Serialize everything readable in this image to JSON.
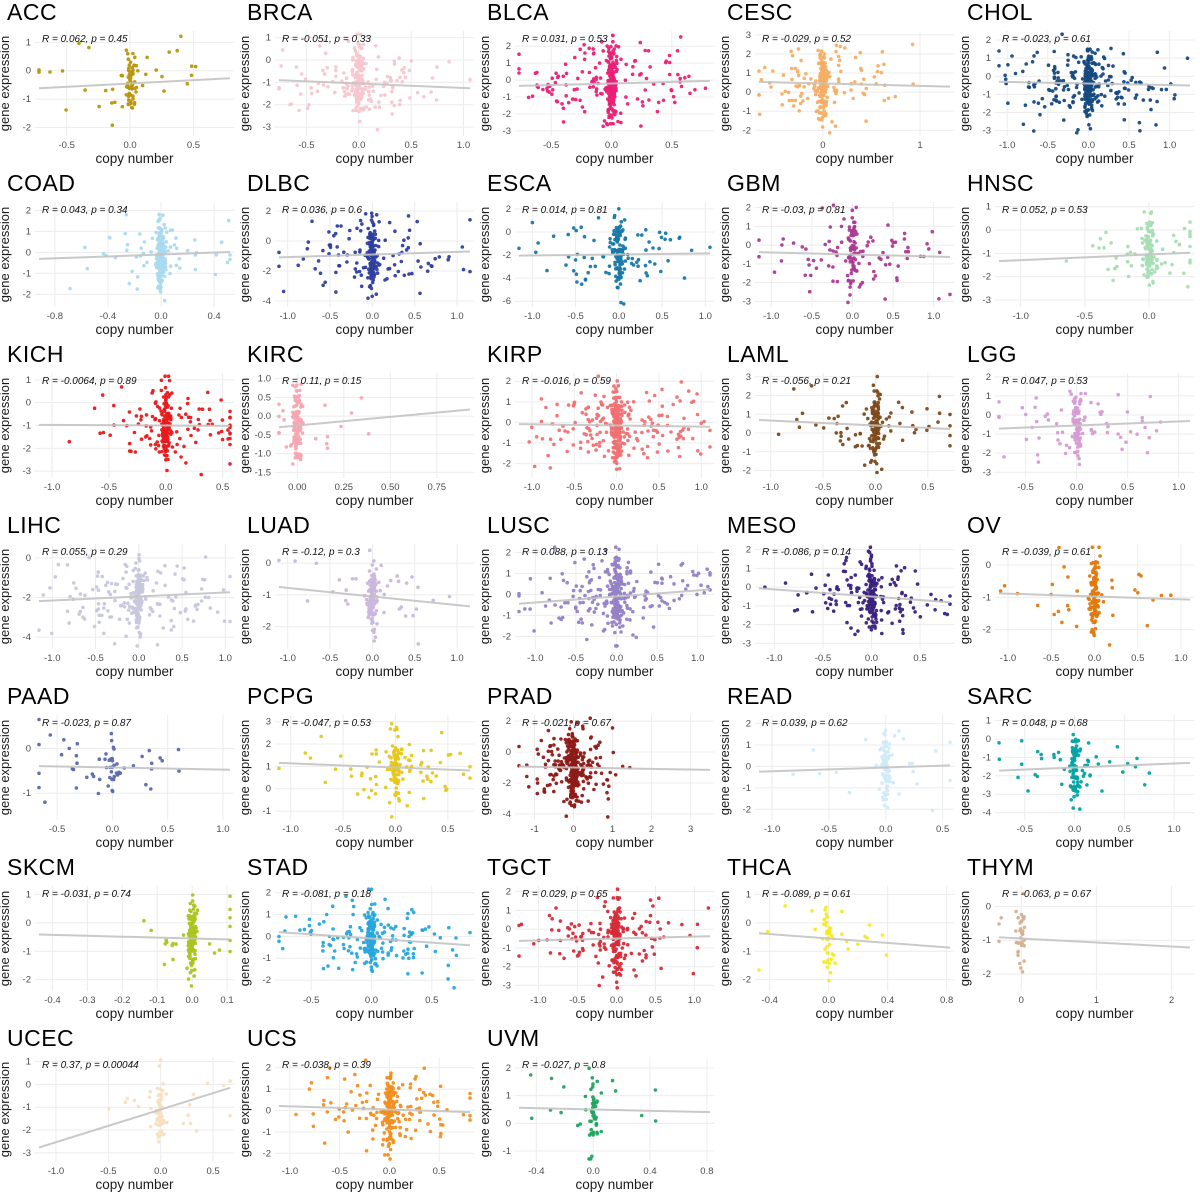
{
  "figure": {
    "xlabel": "copy number",
    "ylabel": "gene expression",
    "grid_color": "#ececec",
    "trend_color": "#c3c3c3",
    "tick_color": "#4d4d4d",
    "label_color": "#1a1a1a",
    "annotation_color": "#111111"
  },
  "chart_data": {
    "type": "scatter",
    "description": "Grid of per-cancer-type scatter plots of gene expression vs copy number with linear trend line and Pearson correlation annotation",
    "panels": [
      {
        "title": "ACC",
        "ann": "R = 0.062, p = 0.45",
        "color": "#b8960b",
        "xlim": [
          -0.75,
          0.82
        ],
        "ylim": [
          -2.3,
          1.4
        ],
        "xticks": [
          "-0.5",
          "0.0",
          "0.5"
        ],
        "yticks": [
          "1",
          "0",
          "-1",
          "-2"
        ],
        "n": 90,
        "spread": 0.45
      },
      {
        "title": "BRCA",
        "ann": "R = -0.051, p = 0.33",
        "color": "#f7c6cf",
        "xlim": [
          -0.8,
          1.1
        ],
        "ylim": [
          -3.4,
          1.3
        ],
        "xticks": [
          "-0.5",
          "0.0",
          "0.5",
          "1.0"
        ],
        "yticks": [
          "1",
          "0",
          "-1",
          "-2",
          "-3"
        ],
        "n": 260,
        "spread": 0.5
      },
      {
        "title": "BLCA",
        "ann": "R = 0.031, p = 0.53",
        "color": "#eb2077",
        "xlim": [
          -0.8,
          0.85
        ],
        "ylim": [
          -3.3,
          2.9
        ],
        "xticks": [
          "-0.5",
          "0.0",
          "0.5"
        ],
        "yticks": [
          "2",
          "1",
          "0",
          "-1",
          "-2",
          "-3"
        ],
        "n": 300,
        "spread": 0.45
      },
      {
        "title": "CESC",
        "ann": "R = -0.029, p = 0.52",
        "color": "#f6ae64",
        "xlim": [
          -0.7,
          1.35
        ],
        "ylim": [
          -2.3,
          3.2
        ],
        "xticks": [
          "0",
          "1"
        ],
        "yticks": [
          "3",
          "2",
          "1",
          "0",
          "-1",
          "-2"
        ],
        "n": 250,
        "spread": 0.4
      },
      {
        "title": "CHOL",
        "ann": "R = -0.023, p = 0.61",
        "color": "#16497f",
        "xlim": [
          -1.15,
          1.3
        ],
        "ylim": [
          -3.3,
          2.5
        ],
        "xticks": [
          "-1.0",
          "-0.5",
          "0.0",
          "0.5",
          "1.0"
        ],
        "yticks": [
          "2",
          "1",
          "0",
          "-1",
          "-2",
          "-3"
        ],
        "n": 330,
        "spread": 0.55
      },
      {
        "title": "COAD",
        "ann": "R = 0.043, p = 0.34",
        "color": "#a9daee",
        "xlim": [
          -0.95,
          0.55
        ],
        "ylim": [
          -2.6,
          2.4
        ],
        "xticks": [
          "-0.8",
          "-0.4",
          "0.0",
          "0.4"
        ],
        "yticks": [
          "2",
          "1",
          "0",
          "-1",
          "-2"
        ],
        "n": 240,
        "spread": 0.22
      },
      {
        "title": "DLBC",
        "ann": "R = 0.036, p = 0.6",
        "color": "#2f3f9f",
        "xlim": [
          -1.15,
          1.2
        ],
        "ylim": [
          -4.4,
          2.6
        ],
        "xticks": [
          "-1.0",
          "-0.5",
          "0.0",
          "0.5",
          "1.0"
        ],
        "yticks": [
          "2",
          "0",
          "-2",
          "-4"
        ],
        "n": 220,
        "spread": 0.5
      },
      {
        "title": "ESCA",
        "ann": "R = 0.014, p = 0.81",
        "color": "#1878a8",
        "xlim": [
          -1.2,
          1.1
        ],
        "ylim": [
          -6.5,
          2.6
        ],
        "xticks": [
          "-1.0",
          "-0.5",
          "0.0",
          "0.5",
          "1.0"
        ],
        "yticks": [
          "2",
          "0",
          "-2",
          "-4",
          "-6"
        ],
        "n": 180,
        "spread": 0.45
      },
      {
        "title": "GBM",
        "ann": "R = -0.03, p = 0.81",
        "color": "#ab3a92",
        "xlim": [
          -1.2,
          1.25
        ],
        "ylim": [
          -3.3,
          2.3
        ],
        "xticks": [
          "-1.0",
          "-0.5",
          "0.0",
          "0.5",
          "1.0"
        ],
        "yticks": [
          "2",
          "1",
          "0",
          "-1",
          "-2",
          "-3"
        ],
        "n": 150,
        "spread": 0.55
      },
      {
        "title": "HNSC",
        "ann": "R = 0.052, p = 0.53",
        "color": "#a7ddb3",
        "xlim": [
          -1.2,
          0.35
        ],
        "ylim": [
          -3.3,
          1.2
        ],
        "xticks": [
          "-1.0",
          "-0.5",
          "0.0"
        ],
        "yticks": [
          "1",
          "0",
          "-1",
          "-2",
          "-3"
        ],
        "n": 150,
        "spread": 0.4
      },
      {
        "title": "KICH",
        "ann": "R = -0.0064, p = 0.89",
        "color": "#e71a1c",
        "xlim": [
          -1.15,
          0.6
        ],
        "ylim": [
          -3.3,
          1.3
        ],
        "xticks": [
          "-1.0",
          "-0.5",
          "0.0",
          "0.5"
        ],
        "yticks": [
          "1",
          "0",
          "-1",
          "-2",
          "-3"
        ],
        "n": 220,
        "spread": 0.5
      },
      {
        "title": "KIRC",
        "ann": "R = 0.11, p = 0.15",
        "color": "#f8a6b0",
        "xlim": [
          -0.12,
          0.95
        ],
        "ylim": [
          -1.65,
          1.15
        ],
        "xticks": [
          "0.00",
          "0.25",
          "0.50",
          "0.75"
        ],
        "yticks": [
          "1.0",
          "0.5",
          "0.0",
          "-0.5",
          "-1.0",
          "-1.5"
        ],
        "n": 140,
        "spread": 0.12
      },
      {
        "title": "KIRP",
        "ann": "R = -0.016, p = 0.59",
        "color": "#f07173",
        "xlim": [
          -1.2,
          1.15
        ],
        "ylim": [
          -2.7,
          2.4
        ],
        "xticks": [
          "-1.0",
          "-0.5",
          "0.0",
          "0.5",
          "1.0"
        ],
        "yticks": [
          "2",
          "1",
          "0",
          "-1",
          "-2"
        ],
        "n": 340,
        "spread": 0.55
      },
      {
        "title": "LAML",
        "ann": "R = -0.056, p = 0.21",
        "color": "#7d4b1d",
        "xlim": [
          -1.15,
          0.75
        ],
        "ylim": [
          -2.4,
          3.2
        ],
        "xticks": [
          "-1.0",
          "-0.5",
          "0.0",
          "0.5"
        ],
        "yticks": [
          "3",
          "2",
          "1",
          "0",
          "-1",
          "-2"
        ],
        "n": 190,
        "spread": 0.35
      },
      {
        "title": "LGG",
        "ann": "R = 0.047, p = 0.53",
        "color": "#d69cd4",
        "xlim": [
          -0.8,
          1.15
        ],
        "ylim": [
          -3.3,
          2.2
        ],
        "xticks": [
          "-0.5",
          "0.0",
          "0.5",
          "1.0"
        ],
        "yticks": [
          "2",
          "1",
          "0",
          "-1",
          "-2",
          "-3"
        ],
        "n": 140,
        "spread": 0.4
      },
      {
        "title": "LIHC",
        "ann": "R = 0.055, p = 0.29",
        "color": "#c7c7dd",
        "xlim": [
          -1.2,
          1.1
        ],
        "ylim": [
          -4.6,
          0.7
        ],
        "xticks": [
          "-1.0",
          "-0.5",
          "0.0",
          "0.5",
          "1.0"
        ],
        "yticks": [
          "0",
          "-2",
          "-4"
        ],
        "n": 260,
        "spread": 0.5
      },
      {
        "title": "LUAD",
        "ann": "R = -0.12, p = 0.3",
        "color": "#cab7db",
        "xlim": [
          -1.15,
          1.2
        ],
        "ylim": [
          -2.7,
          0.6
        ],
        "xticks": [
          "-1.0",
          "-0.5",
          "0.0",
          "0.5",
          "1.0"
        ],
        "yticks": [
          "0",
          "-1",
          "-2"
        ],
        "n": 140,
        "spread": 0.25
      },
      {
        "title": "LUSC",
        "ann": "R = 0.088, p = 0.13",
        "color": "#9581c5",
        "xlim": [
          -1.25,
          1.2
        ],
        "ylim": [
          -2.6,
          2.4
        ],
        "xticks": [
          "-1.0",
          "-0.5",
          "0.0",
          "0.5",
          "1.0"
        ],
        "yticks": [
          "2",
          "1",
          "0",
          "-1",
          "-2"
        ],
        "n": 320,
        "spread": 0.55
      },
      {
        "title": "MESO",
        "ann": "R = -0.086, p = 0.14",
        "color": "#3a2280",
        "xlim": [
          -1.2,
          0.85
        ],
        "ylim": [
          -3.3,
          2.3
        ],
        "xticks": [
          "-1.0",
          "-0.5",
          "0.0",
          "0.5"
        ],
        "yticks": [
          "2",
          "1",
          "0",
          "-1",
          "-2",
          "-3"
        ],
        "n": 240,
        "spread": 0.55
      },
      {
        "title": "OV",
        "ann": "R = -0.039, p = 0.61",
        "color": "#e0790f",
        "xlim": [
          -1.15,
          1.15
        ],
        "ylim": [
          -2.6,
          0.65
        ],
        "xticks": [
          "-1.0",
          "-0.5",
          "0.0",
          "0.5",
          "1.0"
        ],
        "yticks": [
          "0",
          "-1",
          "-2"
        ],
        "n": 140,
        "spread": 0.3
      },
      {
        "title": "PAAD",
        "ann": "R = -0.023, p = 0.87",
        "color": "#5b69ad",
        "xlim": [
          -0.7,
          1.1
        ],
        "ylim": [
          -1.6,
          0.75
        ],
        "xticks": [
          "-0.5",
          "0.0",
          "0.5",
          "1.0"
        ],
        "yticks": [
          "0",
          "-1"
        ],
        "n": 60,
        "spread": 0.75
      },
      {
        "title": "PCPG",
        "ann": "R = -0.047, p = 0.53",
        "color": "#e7c71a",
        "xlim": [
          -1.15,
          0.75
        ],
        "ylim": [
          -1.4,
          3.3
        ],
        "xticks": [
          "-1.0",
          "-0.5",
          "0.0",
          "0.5"
        ],
        "yticks": [
          "3",
          "2",
          "1",
          "0",
          "-1"
        ],
        "n": 150,
        "spread": 0.45
      },
      {
        "title": "PRAD",
        "ann": "R = -0.021, p = 0.67",
        "color": "#8e1a17",
        "xlim": [
          -1.5,
          3.6
        ],
        "ylim": [
          -4.4,
          2.4
        ],
        "xticks": [
          "-1",
          "0",
          "1",
          "2",
          "3"
        ],
        "yticks": [
          "2",
          "0",
          "-2",
          "-4"
        ],
        "n": 320,
        "spread": 0.55,
        "xsd": 0.09
      },
      {
        "title": "READ",
        "ann": "R = 0.039, p = 0.62",
        "color": "#cfeaf8",
        "xlim": [
          -1.15,
          0.6
        ],
        "ylim": [
          -2.5,
          2.4
        ],
        "xticks": [
          "-1.0",
          "-0.5",
          "0.0",
          "0.5"
        ],
        "yticks": [
          "2",
          "1",
          "0",
          "-1",
          "-2"
        ],
        "n": 90,
        "spread": 0.2
      },
      {
        "title": "SARC",
        "ann": "R = 0.048, p = 0.68",
        "color": "#03a3a3",
        "xlim": [
          -0.8,
          1.2
        ],
        "ylim": [
          -4.4,
          1.3
        ],
        "xticks": [
          "-0.5",
          "0.0",
          "0.5",
          "1.0"
        ],
        "yticks": [
          "1",
          "0",
          "-1",
          "-2",
          "-3",
          "-4"
        ],
        "n": 120,
        "spread": 0.4
      },
      {
        "title": "SKCM",
        "ann": "R = -0.031, p = 0.74",
        "color": "#aac520",
        "xlim": [
          -0.45,
          0.12
        ],
        "ylim": [
          -2.4,
          1.3
        ],
        "xticks": [
          "-0.4",
          "-0.3",
          "-0.2",
          "-0.1",
          "0.0",
          "0.1"
        ],
        "yticks": [
          "1",
          "0",
          "-1",
          "-2"
        ],
        "n": 150,
        "spread": 0.15
      },
      {
        "title": "STAD",
        "ann": "R = -0.081, p = 0.18",
        "color": "#27a7dc",
        "xlim": [
          -0.8,
          0.85
        ],
        "ylim": [
          -2.5,
          2.3
        ],
        "xticks": [
          "-0.5",
          "0.0",
          "0.5"
        ],
        "yticks": [
          "2",
          "1",
          "0",
          "-1",
          "-2"
        ],
        "n": 260,
        "spread": 0.5
      },
      {
        "title": "TGCT",
        "ann": "R = 0.029, p = 0.65",
        "color": "#d62b38",
        "xlim": [
          -1.3,
          1.25
        ],
        "ylim": [
          -3.3,
          2.3
        ],
        "xticks": [
          "-1.0",
          "-0.5",
          "0.0",
          "0.5",
          "1.0"
        ],
        "yticks": [
          "2",
          "1",
          "0",
          "-1",
          "-2",
          "-3"
        ],
        "n": 240,
        "spread": 0.55
      },
      {
        "title": "THCA",
        "ann": "R = -0.089, p = 0.61",
        "color": "#f6ea25",
        "xlim": [
          -0.5,
          0.85
        ],
        "ylim": [
          -2.4,
          1.3
        ],
        "xticks": [
          "-0.4",
          "0.0",
          "0.4",
          "0.8"
        ],
        "yticks": [
          "1",
          "0",
          "-1",
          "-2"
        ],
        "n": 55,
        "spread": 0.25
      },
      {
        "title": "THYM",
        "ann": "R = -0.063, p = 0.67",
        "color": "#d5b193",
        "xlim": [
          -0.35,
          2.3
        ],
        "ylim": [
          -2.5,
          0.6
        ],
        "xticks": [
          "0",
          "1",
          "2"
        ],
        "yticks": [
          "0",
          "-1",
          "-2"
        ],
        "n": 40,
        "spread": 0.12
      },
      {
        "title": "UCEC",
        "ann": "R = 0.37, p = 0.00044",
        "color": "#f8dec1",
        "xlim": [
          -1.2,
          0.7
        ],
        "ylim": [
          -3.4,
          1.2
        ],
        "xticks": [
          "-1.0",
          "-0.5",
          "0.0",
          "0.5"
        ],
        "yticks": [
          "1",
          "0",
          "-1",
          "-2",
          "-3"
        ],
        "n": 80,
        "spread": 0.35
      },
      {
        "title": "UCS",
        "ann": "R = -0.038, p = 0.39",
        "color": "#f28f20",
        "xlim": [
          -1.15,
          0.85
        ],
        "ylim": [
          -2.4,
          2.5
        ],
        "xticks": [
          "-1.0",
          "-0.5",
          "0.0",
          "0.5"
        ],
        "yticks": [
          "2",
          "1",
          "0",
          "-1",
          "-2"
        ],
        "n": 260,
        "spread": 0.5
      },
      {
        "title": "UVM",
        "ann": "R = -0.027, p = 0.8",
        "color": "#20a45f",
        "xlim": [
          -0.55,
          0.85
        ],
        "ylim": [
          -1.4,
          2.4
        ],
        "xticks": [
          "-0.4",
          "0.0",
          "0.4",
          "0.8"
        ],
        "yticks": [
          "2",
          "1",
          "0",
          "-1"
        ],
        "n": 60,
        "spread": 0.35
      }
    ]
  }
}
